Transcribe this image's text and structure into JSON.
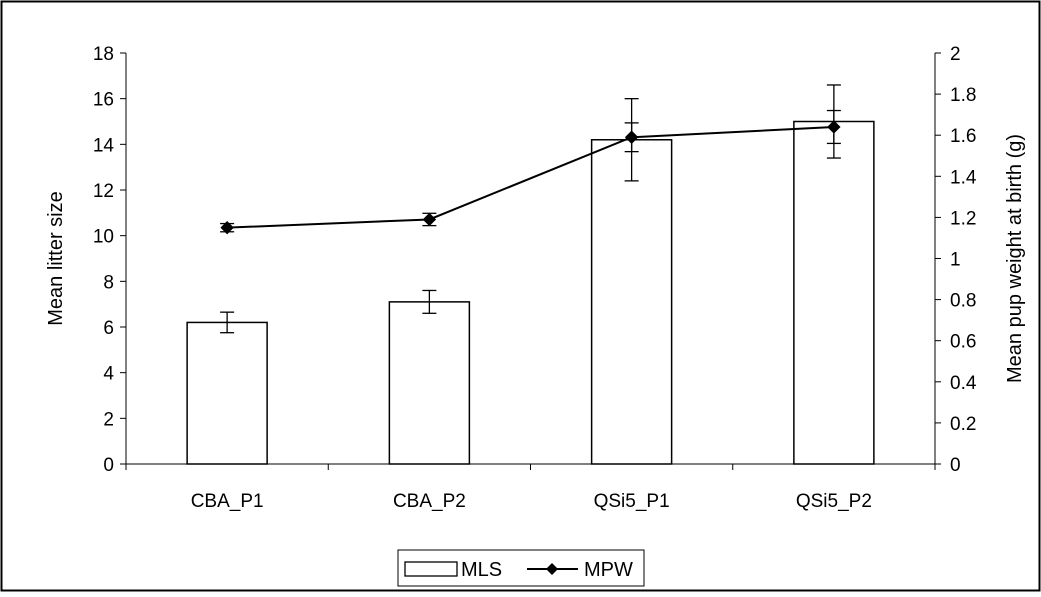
{
  "chart_data": {
    "type": "bar",
    "categories": [
      "CBA_P1",
      "CBA_P2",
      "QSi5_P1",
      "QSi5_P2"
    ],
    "series": [
      {
        "name": "MLS",
        "type": "bar",
        "axis": "left",
        "values": [
          6.2,
          7.1,
          14.2,
          15.0
        ],
        "error": [
          0.45,
          0.5,
          1.8,
          1.6
        ],
        "fill": "#ffffff"
      },
      {
        "name": "MPW",
        "type": "line",
        "axis": "right",
        "values": [
          1.15,
          1.19,
          1.59,
          1.64
        ],
        "error": [
          0.02,
          0.03,
          0.07,
          0.08
        ],
        "marker": "diamond"
      }
    ],
    "title": "",
    "xlabel": "",
    "ylabel": "Mean litter size",
    "y2label": "Mean pup weight at birth (g)",
    "ylim": [
      0,
      18
    ],
    "ylim2": [
      0,
      2
    ],
    "yticks": [
      "0",
      "2",
      "4",
      "6",
      "8",
      "10",
      "12",
      "14",
      "16",
      "18"
    ],
    "y2ticks": [
      "0",
      "0.2",
      "0.4",
      "0.6",
      "0.8",
      "1",
      "1.2",
      "1.4",
      "1.6",
      "1.8",
      "2"
    ],
    "grid": false,
    "legend": {
      "position": "bottom",
      "entries": [
        "MLS",
        "MPW"
      ]
    },
    "colors": {
      "line": "#000000",
      "bar_stroke": "#000000",
      "bar_fill": "#ffffff"
    }
  }
}
